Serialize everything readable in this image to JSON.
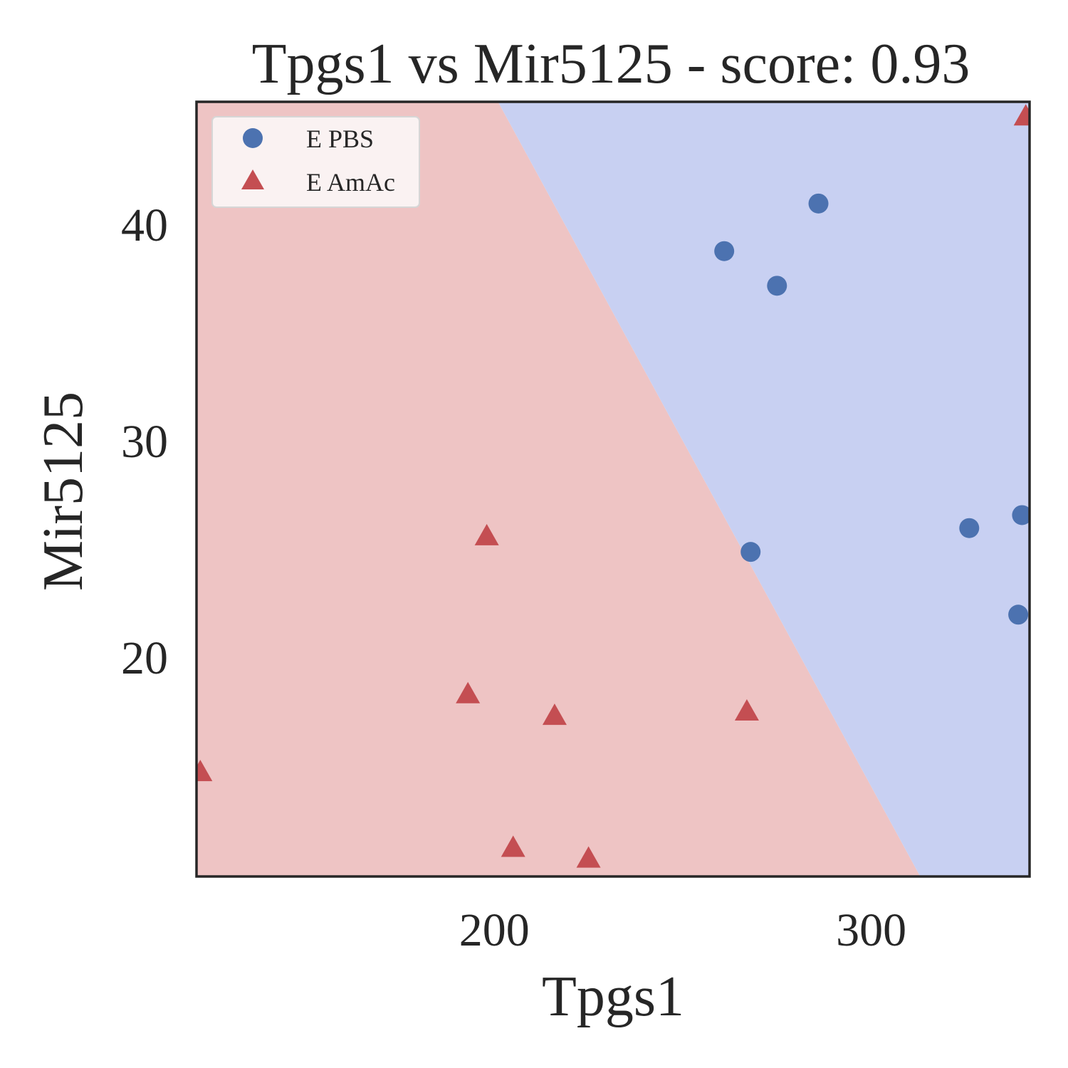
{
  "chart_data": {
    "type": "scatter",
    "title": "Tpgs1 vs Mir5125 - score: 0.93",
    "xlabel": "Tpgs1",
    "ylabel": "Mir5125",
    "xlim": [
      121,
      342
    ],
    "ylim": [
      9.9,
      45.7
    ],
    "xticks": [
      200,
      300
    ],
    "yticks": [
      20,
      30,
      40
    ],
    "grid": false,
    "legend_position": "top-left",
    "decision_boundary": {
      "points": [
        [
          201,
          45.7
        ],
        [
          313,
          9.9
        ]
      ],
      "region_above_color": "#c8d0f2",
      "region_below_color": "#eec4c4",
      "region_above_class": "E PBS",
      "region_below_class": "E AmAc"
    },
    "series": [
      {
        "name": "E PBS",
        "marker": "circle",
        "color": "#4c72b0",
        "points": [
          [
            261,
            38.8
          ],
          [
            275,
            37.2
          ],
          [
            286,
            41.0
          ],
          [
            268,
            24.9
          ],
          [
            326,
            26.0
          ],
          [
            340,
            26.6
          ],
          [
            339,
            22.0
          ]
        ]
      },
      {
        "name": "E AmAc",
        "marker": "triangle",
        "color": "#c44e52",
        "points": [
          [
            122,
            14.7
          ],
          [
            193,
            18.3
          ],
          [
            198,
            25.6
          ],
          [
            205,
            11.2
          ],
          [
            216,
            17.3
          ],
          [
            225,
            10.7
          ],
          [
            267,
            17.5
          ],
          [
            341,
            45.0
          ]
        ]
      }
    ]
  }
}
